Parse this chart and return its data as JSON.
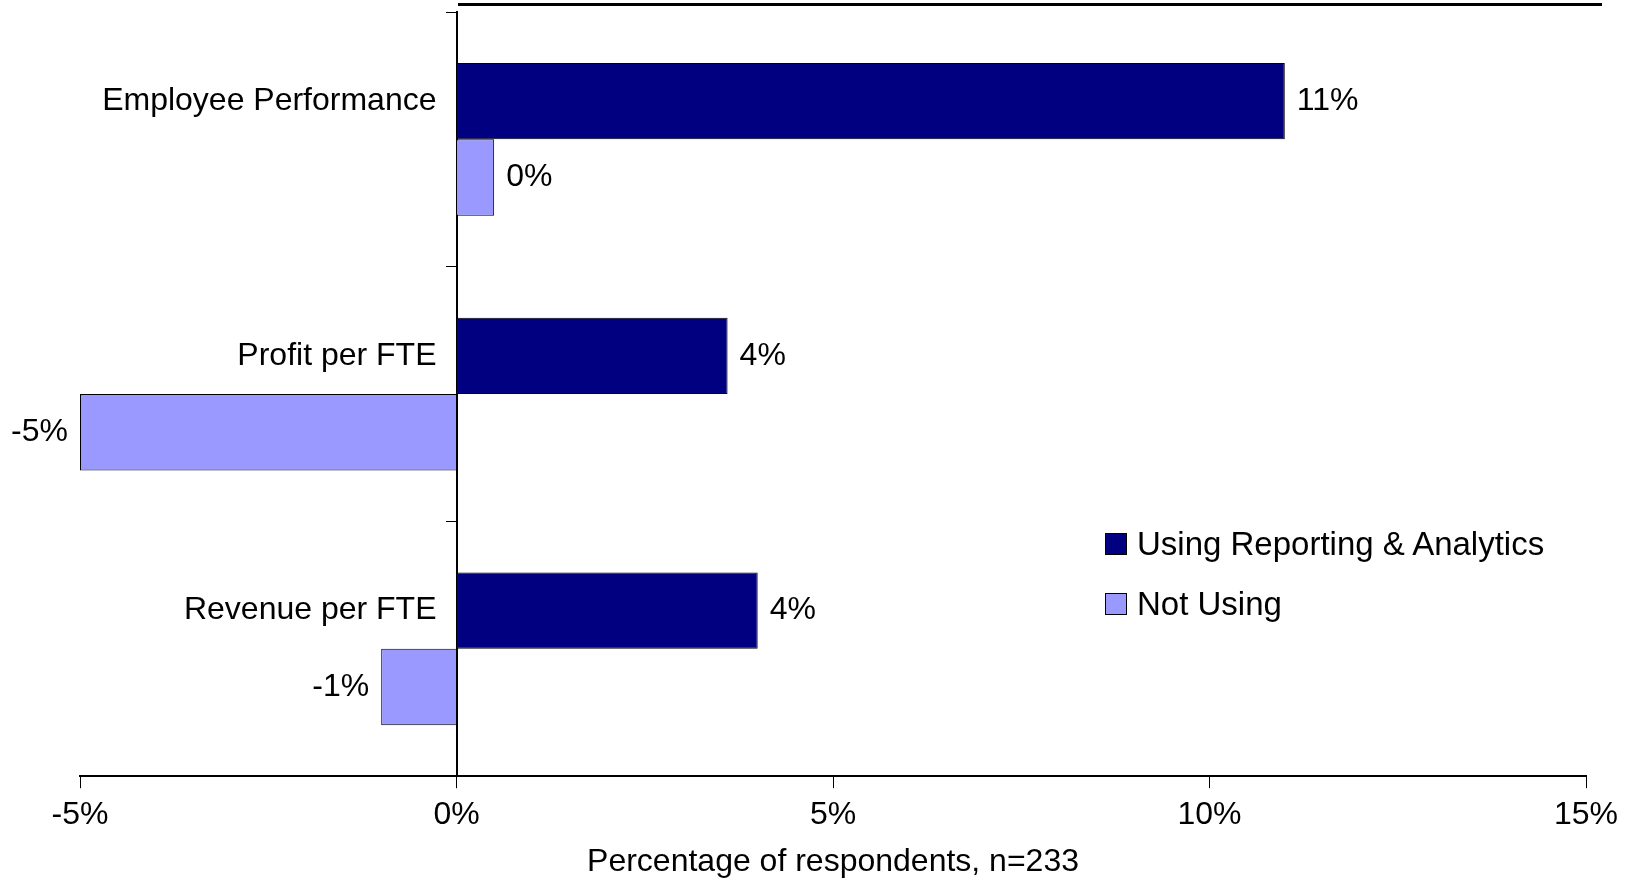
{
  "chart_data": {
    "type": "bar",
    "orientation": "horizontal",
    "categories": [
      "Employee Performance",
      "Profit per FTE",
      "Revenue per FTE"
    ],
    "series": [
      {
        "name": "Using Reporting & Analytics",
        "color": "#000080",
        "values": [
          11.0,
          3.6,
          4.0
        ],
        "value_labels": [
          "11%",
          "4%",
          "4%"
        ]
      },
      {
        "name": "Not Using",
        "color": "#9999ff",
        "values": [
          0.5,
          -5.0,
          -1.0
        ],
        "value_labels": [
          "0%",
          "-5%",
          "-1%"
        ]
      }
    ],
    "xlabel": "Percentage of respondents, n=233",
    "xlim": [
      -5,
      15
    ],
    "xticks": [
      {
        "value": -5,
        "label": "-5%"
      },
      {
        "value": 0,
        "label": "0%"
      },
      {
        "value": 5,
        "label": "5%"
      },
      {
        "value": 10,
        "label": "10%"
      },
      {
        "value": 15,
        "label": "15%"
      }
    ],
    "grid": false,
    "legend": "bottom right"
  }
}
